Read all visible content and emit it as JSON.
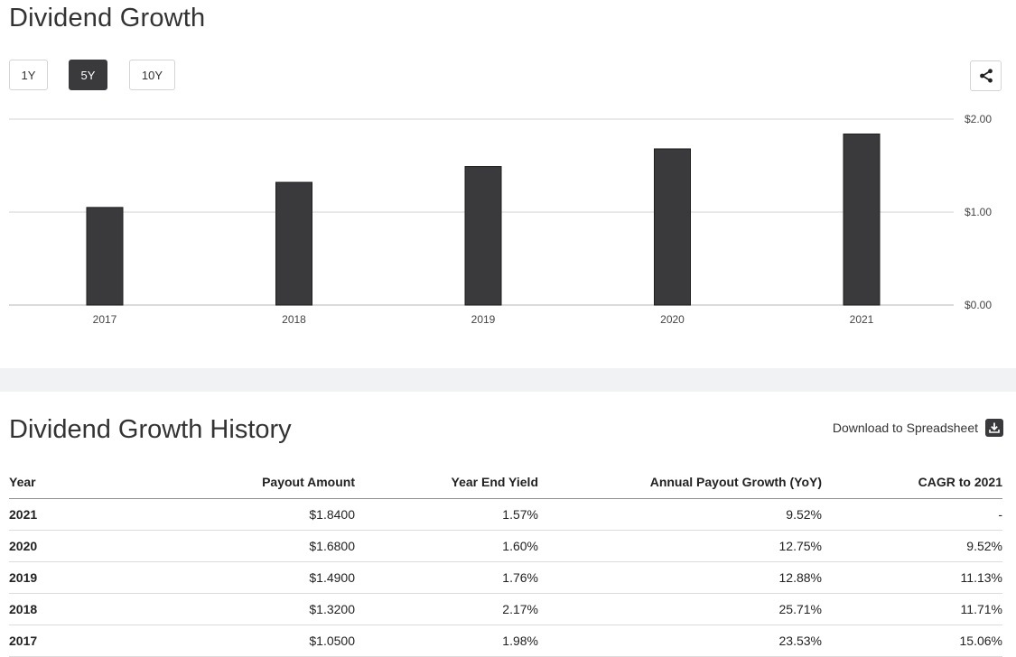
{
  "header": {
    "title": "Dividend Growth",
    "ranges": [
      "1Y",
      "5Y",
      "10Y"
    ],
    "active_range": "5Y"
  },
  "icons": {
    "share": "share-icon",
    "download": "download-icon"
  },
  "chart_data": {
    "type": "bar",
    "title": "",
    "xlabel": "",
    "ylabel": "",
    "categories": [
      "2017",
      "2018",
      "2019",
      "2020",
      "2021"
    ],
    "values": [
      1.05,
      1.32,
      1.49,
      1.68,
      1.84
    ],
    "ylim": [
      0,
      2
    ],
    "y_ticks": [
      {
        "value": 0,
        "label": "$0.00"
      },
      {
        "value": 1,
        "label": "$1.00"
      },
      {
        "value": 2,
        "label": "$2.00"
      }
    ],
    "grid": true,
    "y_axis_side": "right",
    "bar_color": "#3a3a3c"
  },
  "history": {
    "title": "Dividend Growth History",
    "download_label": "Download to Spreadsheet",
    "columns": [
      "Year",
      "Payout Amount",
      "Year End Yield",
      "Annual Payout Growth (YoY)",
      "CAGR to 2021"
    ],
    "rows": [
      [
        "2021",
        "$1.8400",
        "1.57%",
        "9.52%",
        "-"
      ],
      [
        "2020",
        "$1.6800",
        "1.60%",
        "12.75%",
        "9.52%"
      ],
      [
        "2019",
        "$1.4900",
        "1.76%",
        "12.88%",
        "11.13%"
      ],
      [
        "2018",
        "$1.3200",
        "2.17%",
        "25.71%",
        "11.71%"
      ],
      [
        "2017",
        "$1.0500",
        "1.98%",
        "23.53%",
        "15.06%"
      ]
    ]
  }
}
